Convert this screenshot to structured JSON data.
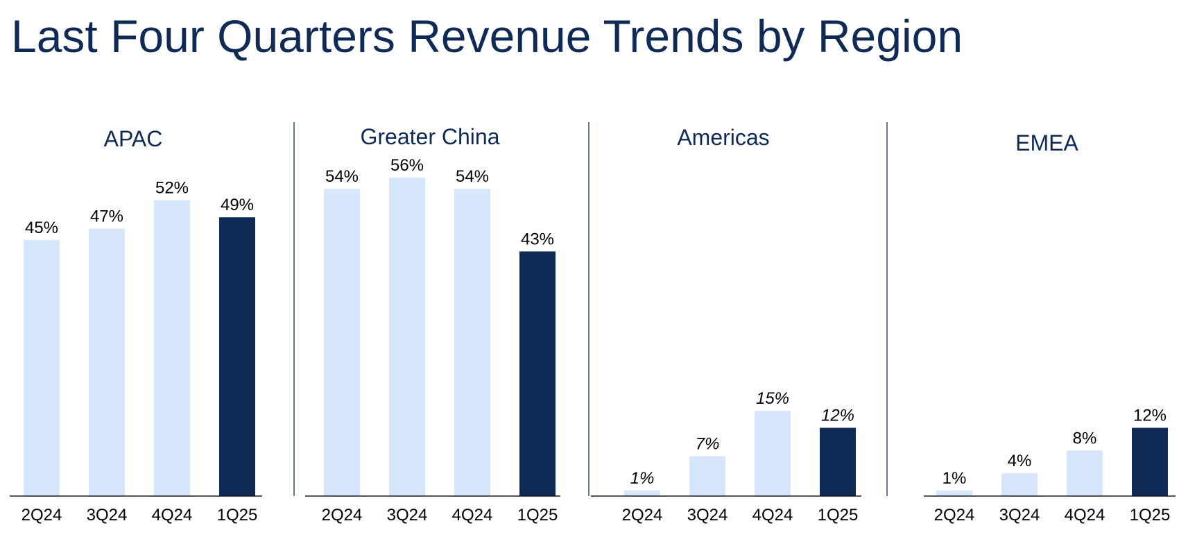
{
  "title": "Last Four Quarters Revenue Trends by Region",
  "chart_data": [
    {
      "type": "bar",
      "title": "APAC",
      "categories": [
        "2Q24",
        "3Q24",
        "4Q24",
        "1Q25"
      ],
      "values": [
        45,
        47,
        52,
        49
      ],
      "labels": [
        "45%",
        "47%",
        "52%",
        "49%"
      ],
      "italic_labels": false,
      "ylim": [
        0,
        60
      ],
      "colors": {
        "past": "#d6e6fb",
        "latest": "#0e2a55"
      },
      "grid": false
    },
    {
      "type": "bar",
      "title": "Greater China",
      "categories": [
        "2Q24",
        "3Q24",
        "4Q24",
        "1Q25"
      ],
      "values": [
        54,
        56,
        54,
        43
      ],
      "labels": [
        "54%",
        "56%",
        "54%",
        "43%"
      ],
      "italic_labels": false,
      "ylim": [
        0,
        60
      ],
      "colors": {
        "past": "#d6e6fb",
        "latest": "#0e2a55"
      },
      "grid": false
    },
    {
      "type": "bar",
      "title": "Americas",
      "categories": [
        "2Q24",
        "3Q24",
        "4Q24",
        "1Q25"
      ],
      "values": [
        1,
        7,
        15,
        12
      ],
      "labels": [
        "1%",
        "7%",
        "15%",
        "12%"
      ],
      "italic_labels": true,
      "ylim": [
        0,
        60
      ],
      "colors": {
        "past": "#d6e6fb",
        "latest": "#0e2a55"
      },
      "grid": false
    },
    {
      "type": "bar",
      "title": "EMEA",
      "categories": [
        "2Q24",
        "3Q24",
        "4Q24",
        "1Q25"
      ],
      "values": [
        1,
        4,
        8,
        12
      ],
      "labels": [
        "1%",
        "4%",
        "8%",
        "12%"
      ],
      "italic_labels": false,
      "ylim": [
        0,
        60
      ],
      "colors": {
        "past": "#d6e6fb",
        "latest": "#0e2a55"
      },
      "grid": false
    }
  ]
}
